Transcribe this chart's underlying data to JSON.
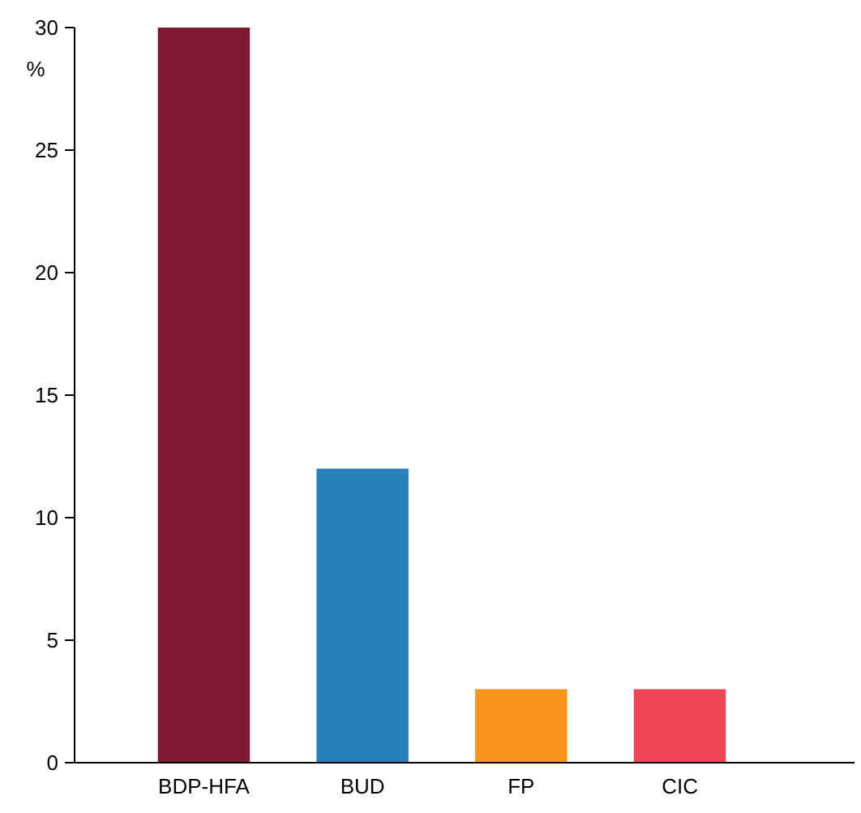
{
  "chart_data": {
    "type": "bar",
    "ylabel": "%",
    "categories": [
      "BDP-HFA",
      "BUD",
      "FP",
      "CIC"
    ],
    "values": [
      30,
      12,
      3,
      3
    ],
    "colors": [
      "#7d1a32",
      "#2a80b9",
      "#f7941d",
      "#f0465a"
    ],
    "ylim": [
      0,
      30
    ],
    "yticks": [
      0,
      5,
      10,
      15,
      20,
      25,
      30
    ]
  }
}
